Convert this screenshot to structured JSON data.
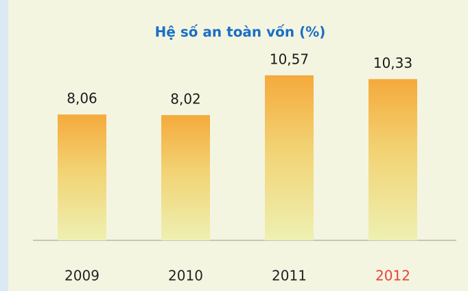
{
  "chart_data": {
    "type": "bar",
    "title": "Hệ số an toàn vốn (%)",
    "categories": [
      "2009",
      "2010",
      "2011",
      "2012"
    ],
    "values": [
      8.06,
      8.02,
      10.57,
      10.33
    ],
    "value_labels": [
      "8,06",
      "8,02",
      "10,57",
      "10,33"
    ],
    "color": "#f5aa3c",
    "category_colors": [
      "#222222",
      "#222222",
      "#222222",
      "#e8423a"
    ]
  }
}
